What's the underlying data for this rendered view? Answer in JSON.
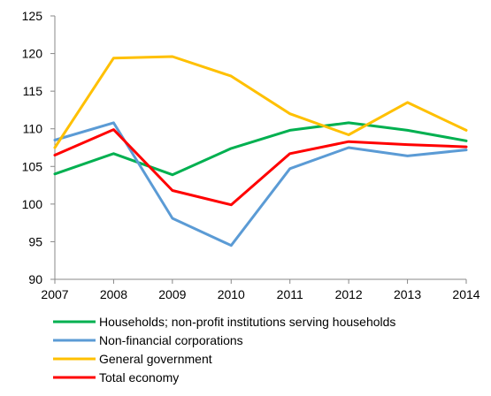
{
  "chart_data": {
    "type": "line",
    "title": "",
    "xlabel": "",
    "ylabel": "",
    "x": [
      "2007",
      "2008",
      "2009",
      "2010",
      "2011",
      "2012",
      "2013",
      "2014"
    ],
    "ylim": [
      90,
      125
    ],
    "yticks": [
      "90",
      "95",
      "100",
      "105",
      "110",
      "115",
      "120",
      "125"
    ],
    "grid": false,
    "legend_position": "bottom",
    "series": [
      {
        "name": "Households; non-profit institutions serving households",
        "color": "#00b050",
        "values": [
          104.0,
          106.7,
          103.9,
          107.4,
          109.8,
          110.8,
          109.8,
          108.4
        ]
      },
      {
        "name": "Non-financial corporations",
        "color": "#5b9bd5",
        "values": [
          108.5,
          110.8,
          98.1,
          94.5,
          104.7,
          107.5,
          106.4,
          107.2
        ]
      },
      {
        "name": "General government",
        "color": "#ffc000",
        "values": [
          107.5,
          119.4,
          119.6,
          117.0,
          112.0,
          109.2,
          113.5,
          109.8
        ]
      },
      {
        "name": "Total economy",
        "color": "#ff0000",
        "values": [
          106.5,
          109.9,
          101.8,
          99.9,
          106.7,
          108.3,
          107.9,
          107.6
        ]
      }
    ]
  }
}
